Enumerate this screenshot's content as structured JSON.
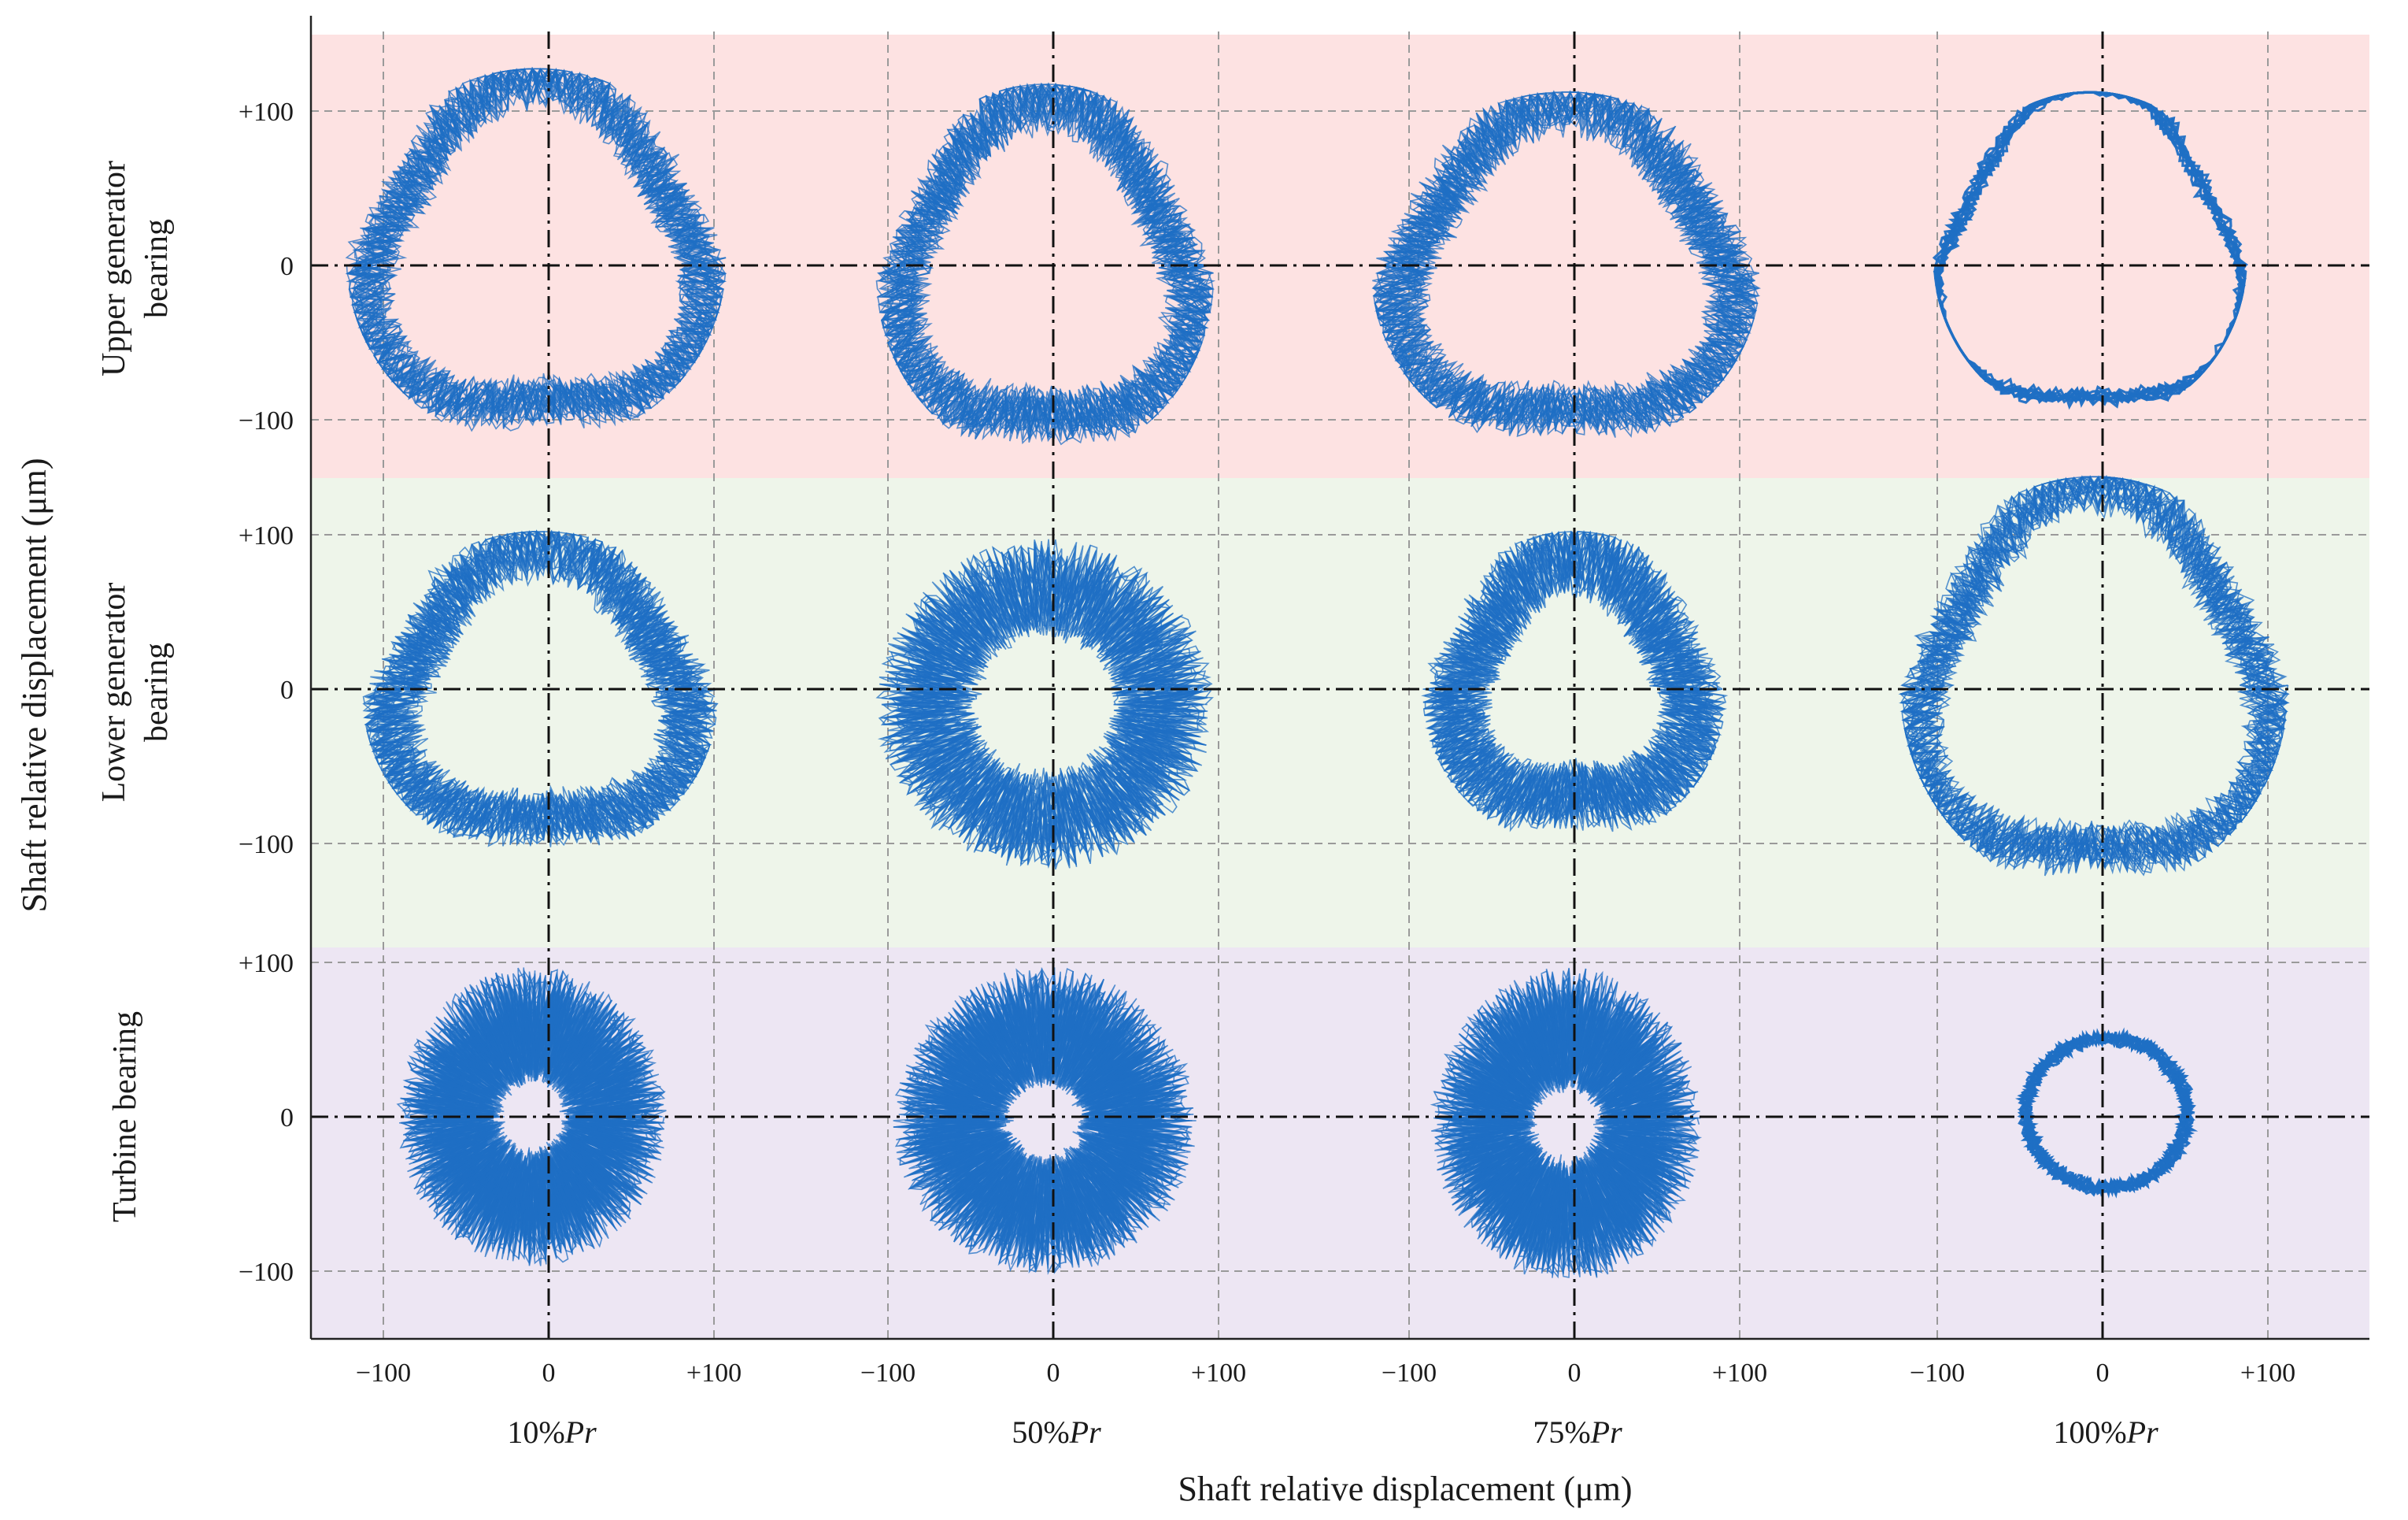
{
  "chart_data": {
    "type": "scatter",
    "subtype": "shaft-orbit-plot",
    "xlabel": "Shaft relative displacement (μm)",
    "ylabel": "Shaft relative displacement (μm)",
    "x_tick_labels": [
      "−100",
      "0",
      "+100"
    ],
    "y_tick_labels": [
      "+100",
      "0",
      "−100"
    ],
    "xlim": [
      -130,
      130
    ],
    "ylim": [
      -130,
      130
    ],
    "conditions": [
      {
        "label_pre": "10%",
        "label_italic": "Pr"
      },
      {
        "label_pre": "50%",
        "label_italic": "Pr"
      },
      {
        "label_pre": "75%",
        "label_italic": "Pr"
      },
      {
        "label_pre": "100%",
        "label_italic": "Pr"
      }
    ],
    "bearings": [
      {
        "name": "Upper generator bearing",
        "label_lines": [
          "Upper generator",
          "bearing"
        ],
        "band_color": "#fde2e2"
      },
      {
        "name": "Lower generator bearing",
        "label_lines": [
          "Lower generator",
          "bearing"
        ],
        "band_color": "#eef5ea"
      },
      {
        "name": "Turbine bearing",
        "label_lines": [
          "Turbine bearing"
        ],
        "band_color": "#ede6f3"
      }
    ],
    "orbit_color": "#1f6fc4",
    "orbits": [
      [
        {
          "shape": "triangle",
          "x_range": [
            -120,
            105
          ],
          "y_range": [
            -115,
            125
          ],
          "thickness_um": 30
        },
        {
          "shape": "triangle",
          "x_range": [
            -105,
            95
          ],
          "y_range": [
            -125,
            115
          ],
          "thickness_um": 35
        },
        {
          "shape": "triangle",
          "x_range": [
            -120,
            110
          ],
          "y_range": [
            -120,
            110
          ],
          "thickness_um": 32
        },
        {
          "shape": "triangle",
          "x_range": [
            -100,
            85
          ],
          "y_range": [
            -100,
            110
          ],
          "thickness_um": 8
        }
      ],
      [
        {
          "shape": "triangle",
          "x_range": [
            -110,
            100
          ],
          "y_range": [
            -110,
            100
          ],
          "thickness_um": 35
        },
        {
          "shape": "round",
          "x_range": [
            -105,
            95
          ],
          "y_range": [
            -115,
            95
          ],
          "thickness_um": 60
        },
        {
          "shape": "triangle",
          "x_range": [
            -90,
            90
          ],
          "y_range": [
            -100,
            100
          ],
          "thickness_um": 45
        },
        {
          "shape": "triangle",
          "x_range": [
            -120,
            110
          ],
          "y_range": [
            -130,
            135
          ],
          "thickness_um": 30
        }
      ],
      [
        {
          "shape": "filled",
          "x_range": [
            -90,
            70
          ],
          "y_range": [
            -95,
            95
          ],
          "thickness_um": 60
        },
        {
          "shape": "filled",
          "x_range": [
            -95,
            85
          ],
          "y_range": [
            -100,
            95
          ],
          "thickness_um": 100
        },
        {
          "shape": "filled",
          "x_range": [
            -85,
            75
          ],
          "y_range": [
            -105,
            95
          ],
          "thickness_um": 100
        },
        {
          "shape": "round",
          "x_range": [
            -50,
            55
          ],
          "y_range": [
            -50,
            55
          ],
          "thickness_um": 8
        }
      ]
    ]
  }
}
